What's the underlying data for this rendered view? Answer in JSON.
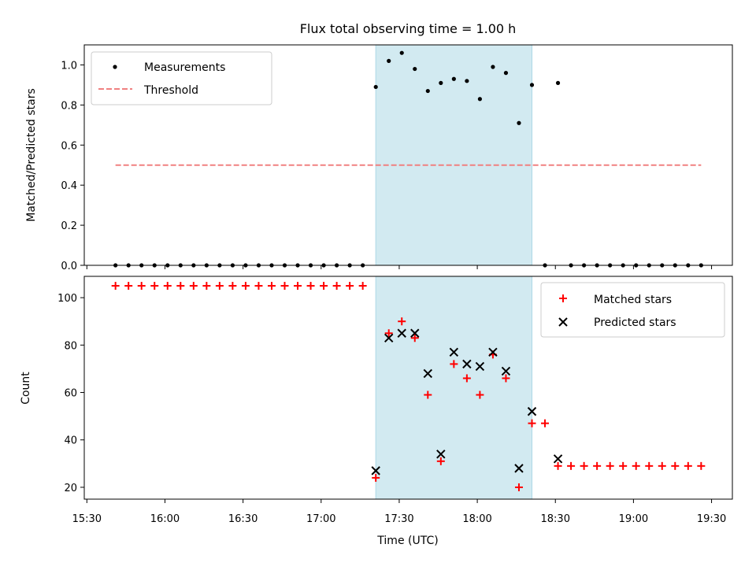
{
  "chart_data": {
    "title": "Flux total observing time = 1.00 h",
    "xlabel": "Time (UTC)",
    "x_ticks": [
      "15:30",
      "16:00",
      "16:30",
      "17:00",
      "17:30",
      "18:00",
      "18:30",
      "19:00",
      "19:30"
    ],
    "x_tick_minutes": [
      930,
      960,
      990,
      1020,
      1050,
      1080,
      1110,
      1140,
      1170
    ],
    "xlim_minutes": [
      929,
      1178
    ],
    "shaded_interval": {
      "from": "17:21",
      "to": "18:21",
      "color": "#add8e6"
    },
    "panels": [
      {
        "type": "scatter",
        "ylabel": "Matched/Predicted stars",
        "ylim": [
          0,
          1.1
        ],
        "yticks": [
          0.0,
          0.2,
          0.4,
          0.6,
          0.8,
          1.0
        ],
        "yticks_labels": [
          "0.0",
          "0.2",
          "0.4",
          "0.6",
          "0.8",
          "1.0"
        ],
        "legend": {
          "placement": "upper-left",
          "entries": [
            "Measurements",
            "Threshold"
          ]
        },
        "series": [
          {
            "name": "Measurements",
            "marker": "dot",
            "color": "#000000",
            "x": [
              "15:41",
              "15:46",
              "15:51",
              "15:56",
              "16:01",
              "16:06",
              "16:11",
              "16:16",
              "16:21",
              "16:26",
              "16:31",
              "16:36",
              "16:41",
              "16:46",
              "16:51",
              "16:56",
              "17:01",
              "17:06",
              "17:11",
              "17:16",
              "17:21",
              "17:26",
              "17:31",
              "17:36",
              "17:41",
              "17:46",
              "17:51",
              "17:56",
              "18:01",
              "18:06",
              "18:11",
              "18:16",
              "18:21",
              "18:26",
              "18:31",
              "18:36",
              "18:41",
              "18:46",
              "18:51",
              "18:56",
              "19:01",
              "19:06",
              "19:11",
              "19:16",
              "19:21",
              "19:26"
            ],
            "y": [
              0,
              0,
              0,
              0,
              0,
              0,
              0,
              0,
              0,
              0,
              0,
              0,
              0,
              0,
              0,
              0,
              0,
              0,
              0,
              0,
              0.89,
              1.02,
              1.06,
              0.98,
              0.87,
              0.91,
              0.93,
              0.92,
              0.83,
              0.99,
              0.96,
              0.71,
              0.9,
              0,
              0.91,
              0,
              0,
              0,
              0,
              0,
              0,
              0,
              0,
              0,
              0,
              0
            ]
          },
          {
            "name": "Threshold",
            "style": "dashed",
            "color": "#f08080",
            "x": [
              "15:41",
              "19:26"
            ],
            "y": [
              0.5,
              0.5
            ]
          }
        ]
      },
      {
        "type": "scatter",
        "ylabel": "Count",
        "ylim": [
          15,
          109
        ],
        "yticks": [
          20,
          40,
          60,
          80,
          100
        ],
        "yticks_labels": [
          "20",
          "40",
          "60",
          "80",
          "100"
        ],
        "legend": {
          "placement": "upper-right",
          "entries": [
            "Matched stars",
            "Predicted stars"
          ]
        },
        "series": [
          {
            "name": "Matched stars",
            "marker": "plus",
            "color": "#ff0000",
            "x": [
              "15:41",
              "15:46",
              "15:51",
              "15:56",
              "16:01",
              "16:06",
              "16:11",
              "16:16",
              "16:21",
              "16:26",
              "16:31",
              "16:36",
              "16:41",
              "16:46",
              "16:51",
              "16:56",
              "17:01",
              "17:06",
              "17:11",
              "17:16",
              "17:21",
              "17:26",
              "17:31",
              "17:36",
              "17:41",
              "17:46",
              "17:51",
              "17:56",
              "18:01",
              "18:06",
              "18:11",
              "18:16",
              "18:21",
              "18:26",
              "18:31",
              "18:36",
              "18:41",
              "18:46",
              "18:51",
              "18:56",
              "19:01",
              "19:06",
              "19:11",
              "19:16",
              "19:21",
              "19:26"
            ],
            "y": [
              105,
              105,
              105,
              105,
              105,
              105,
              105,
              105,
              105,
              105,
              105,
              105,
              105,
              105,
              105,
              105,
              105,
              105,
              105,
              105,
              24,
              85,
              90,
              83,
              59,
              31,
              72,
              66,
              59,
              76,
              66,
              20,
              47,
              47,
              29,
              29,
              29,
              29,
              29,
              29,
              29,
              29,
              29,
              29,
              29,
              29
            ]
          },
          {
            "name": "Predicted stars",
            "marker": "x",
            "color": "#000000",
            "x": [
              "17:21",
              "17:26",
              "17:31",
              "17:36",
              "17:41",
              "17:46",
              "17:51",
              "17:56",
              "18:01",
              "18:06",
              "18:11",
              "18:16",
              "18:21",
              "18:31"
            ],
            "y": [
              27,
              83,
              85,
              85,
              68,
              34,
              77,
              72,
              71,
              77,
              69,
              28,
              52,
              32
            ]
          }
        ]
      }
    ]
  }
}
